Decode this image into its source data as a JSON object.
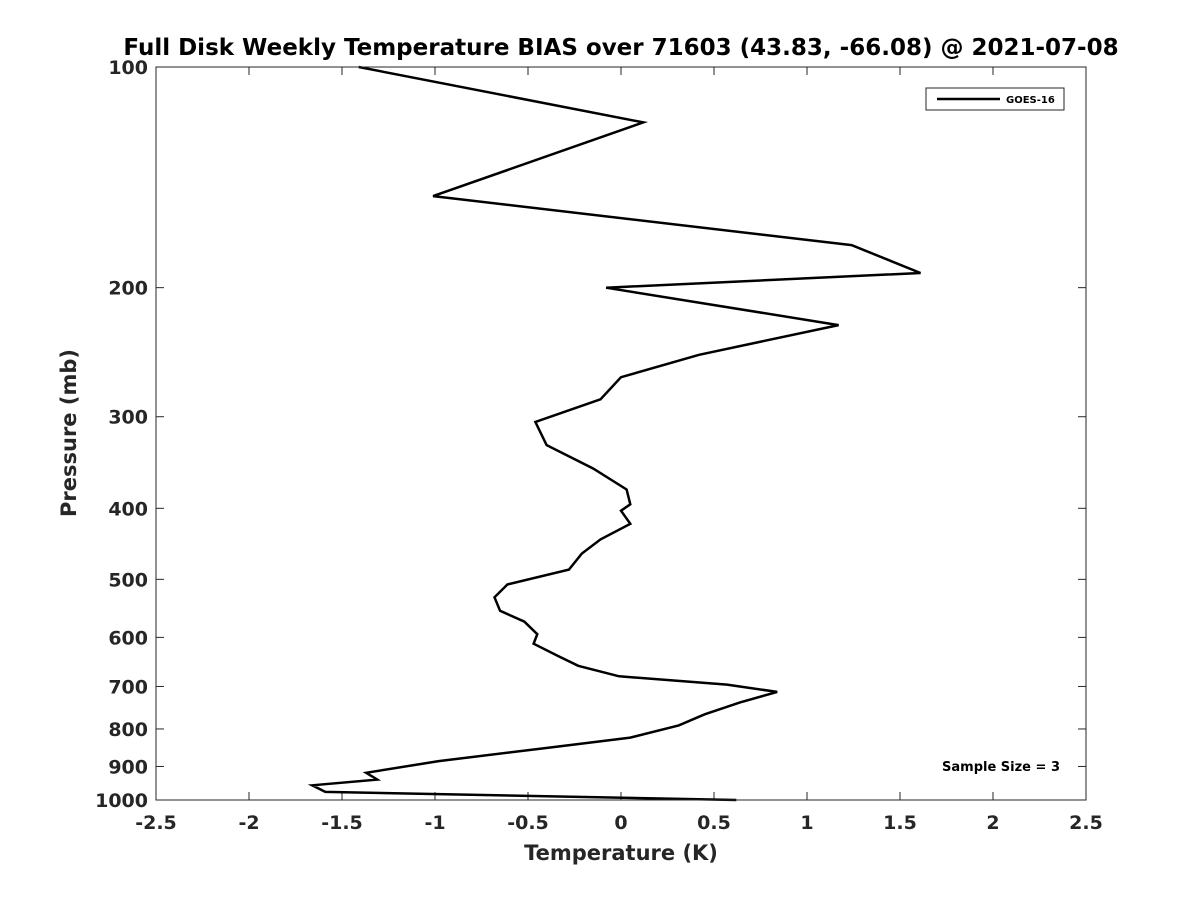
{
  "chart_data": {
    "type": "line",
    "title": "Full Disk Weekly Temperature BIAS over 71603 (43.83, -66.08) @ 2021-07-08",
    "xlabel": "Temperature (K)",
    "ylabel": "Pressure (mb)",
    "xlim": [
      -2.5,
      2.5
    ],
    "ylim": [
      100,
      1000
    ],
    "y_scale": "log",
    "y_reversed": true,
    "x_ticks": [
      -2.5,
      -2,
      -1.5,
      -1,
      -0.5,
      0,
      0.5,
      1,
      1.5,
      2,
      2.5
    ],
    "x_tick_labels": [
      "-2.5",
      "-2",
      "-1.5",
      "-1",
      "-0.5",
      "0",
      "0.5",
      "1",
      "1.5",
      "2",
      "2.5"
    ],
    "y_ticks": [
      100,
      200,
      300,
      400,
      500,
      600,
      700,
      800,
      900,
      1000
    ],
    "y_tick_labels": [
      "100",
      "200",
      "300",
      "400",
      "500",
      "600",
      "700",
      "800",
      "900",
      "1000"
    ],
    "legend": {
      "location": "top-right",
      "entries": [
        "GOES-16"
      ]
    },
    "annotation": "Sample Size = 3",
    "series": [
      {
        "name": "GOES-16",
        "color": "#000000",
        "x": [
          -1.41,
          0.12,
          -1.01,
          1.24,
          1.61,
          -0.08,
          1.17,
          0.42,
          0.0,
          -0.11,
          -0.46,
          -0.4,
          -0.15,
          0.03,
          0.05,
          0.0,
          0.05,
          -0.11,
          -0.21,
          -0.28,
          -0.61,
          -0.68,
          -0.65,
          -0.52,
          -0.45,
          -0.47,
          -0.34,
          -0.23,
          -0.01,
          0.57,
          0.84,
          0.64,
          0.45,
          0.31,
          0.05,
          -0.38,
          -0.98,
          -1.37,
          -1.31,
          -1.66,
          -1.59,
          0.62
        ],
        "y": [
          100,
          119,
          150,
          175,
          191,
          200,
          225,
          247,
          265,
          284,
          305,
          328,
          353,
          377,
          395,
          403,
          420,
          441,
          461,
          485,
          508,
          529,
          552,
          571,
          594,
          612,
          636,
          656,
          678,
          696,
          712,
          736,
          764,
          791,
          822,
          848,
          885,
          918,
          938,
          955,
          975,
          1000
        ]
      }
    ]
  }
}
